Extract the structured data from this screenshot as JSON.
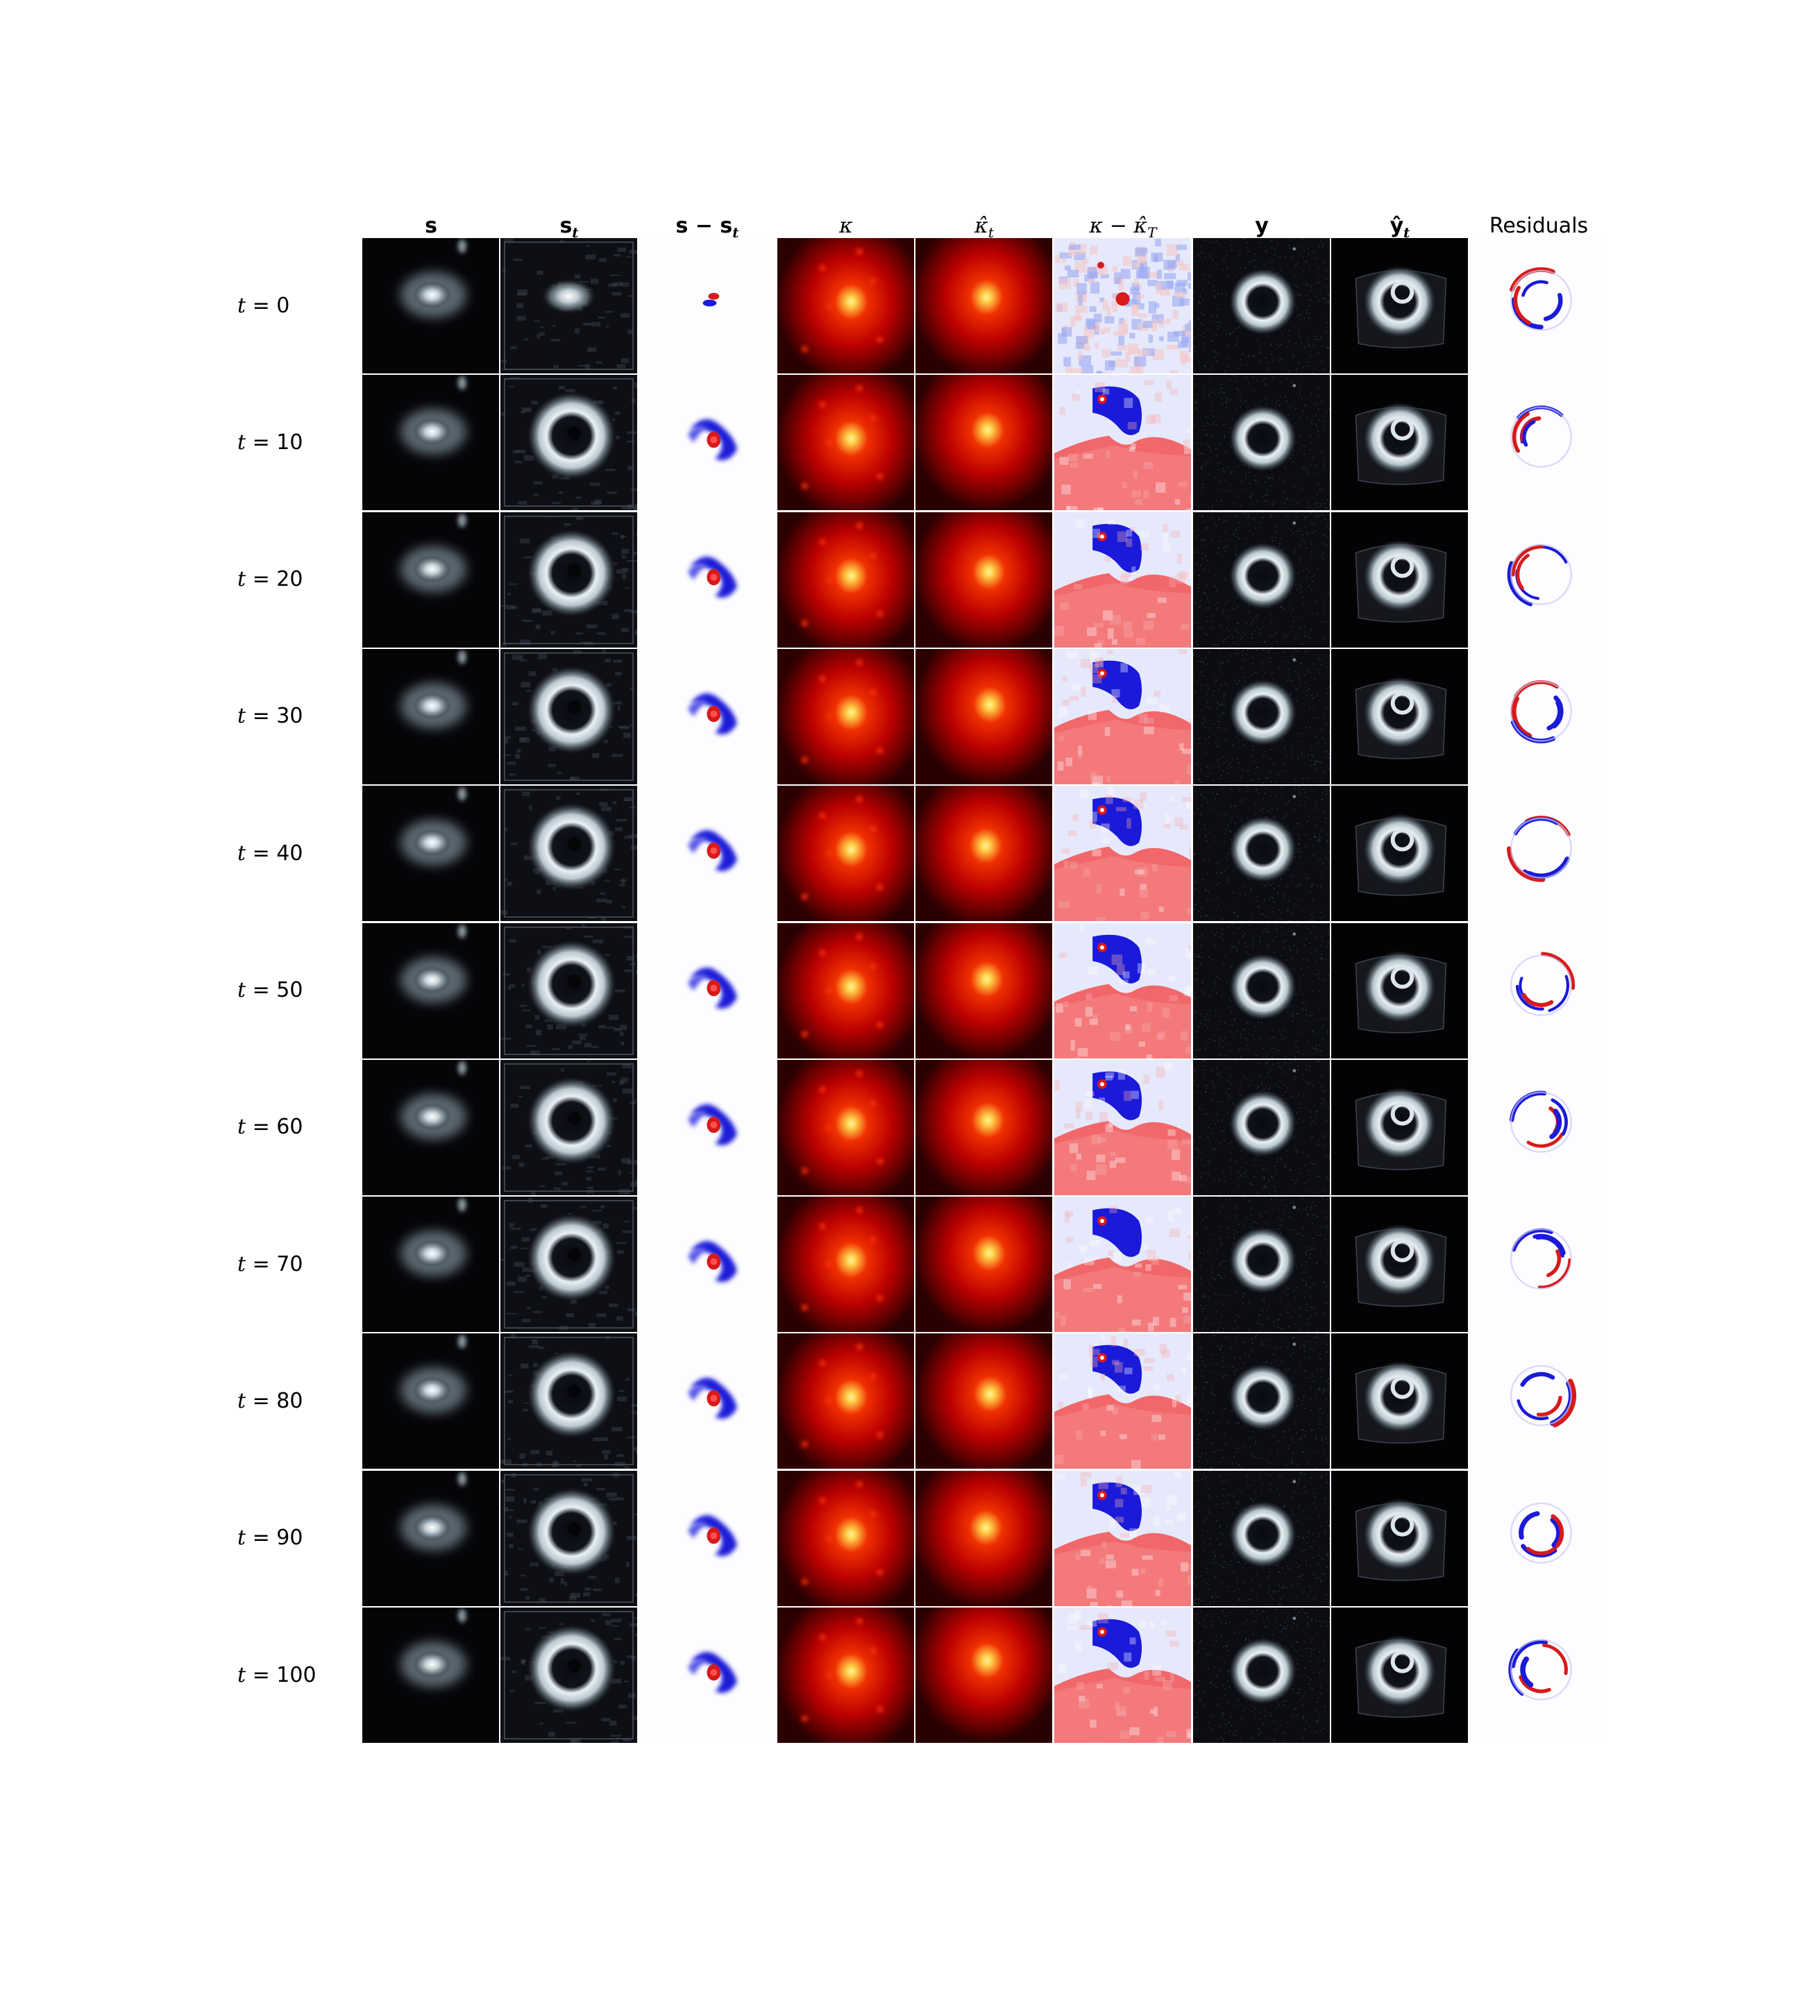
{
  "figure": {
    "columns": [
      {
        "key": "s",
        "label": "s",
        "style": "bold",
        "colormap": "bone"
      },
      {
        "key": "s_t",
        "label": "s",
        "sub": "t",
        "style": "bold",
        "colormap": "bone"
      },
      {
        "key": "s_minus_s_t",
        "label": "s − s",
        "sub": "t",
        "style": "bold",
        "colormap": "seismic"
      },
      {
        "key": "kappa",
        "label": "κ",
        "style": "italic",
        "colormap": "hot"
      },
      {
        "key": "kappa_hat_t",
        "label": "κ̂",
        "sub": "t",
        "style": "italic",
        "colormap": "hot"
      },
      {
        "key": "kappa_minus_kappa_hat_T",
        "label": "κ − κ̂",
        "sub": "T",
        "style": "italic",
        "colormap": "bwr"
      },
      {
        "key": "y",
        "label": "y",
        "style": "bold",
        "colormap": "bone"
      },
      {
        "key": "y_hat_t",
        "label": "ŷ",
        "sub": "t",
        "style": "bold",
        "colormap": "bone"
      },
      {
        "key": "residuals",
        "label": "Residuals",
        "style": "plain",
        "colormap": "seismic"
      }
    ],
    "rows": [
      {
        "var": "t",
        "eq": " = ",
        "value": "0"
      },
      {
        "var": "t",
        "eq": " = ",
        "value": "10"
      },
      {
        "var": "t",
        "eq": " = ",
        "value": "20"
      },
      {
        "var": "t",
        "eq": " = ",
        "value": "30"
      },
      {
        "var": "t",
        "eq": " = ",
        "value": "40"
      },
      {
        "var": "t",
        "eq": " = ",
        "value": "50"
      },
      {
        "var": "t",
        "eq": " = ",
        "value": "60"
      },
      {
        "var": "t",
        "eq": " = ",
        "value": "70"
      },
      {
        "var": "t",
        "eq": " = ",
        "value": "80"
      },
      {
        "var": "t",
        "eq": " = ",
        "value": "90"
      },
      {
        "var": "t",
        "eq": " = ",
        "value": "100"
      }
    ],
    "colors": {
      "bone_dark": "#050508",
      "bone_light": "#eef4f6",
      "hot_dark": "#2a0000",
      "hot_mid": "#c00000",
      "hot_bright": "#ffd24a",
      "blue": "#1a1ad8",
      "red": "#d81a1a",
      "pale_blue": "#c8ccf4",
      "pale_red": "#f6b0b0"
    }
  }
}
